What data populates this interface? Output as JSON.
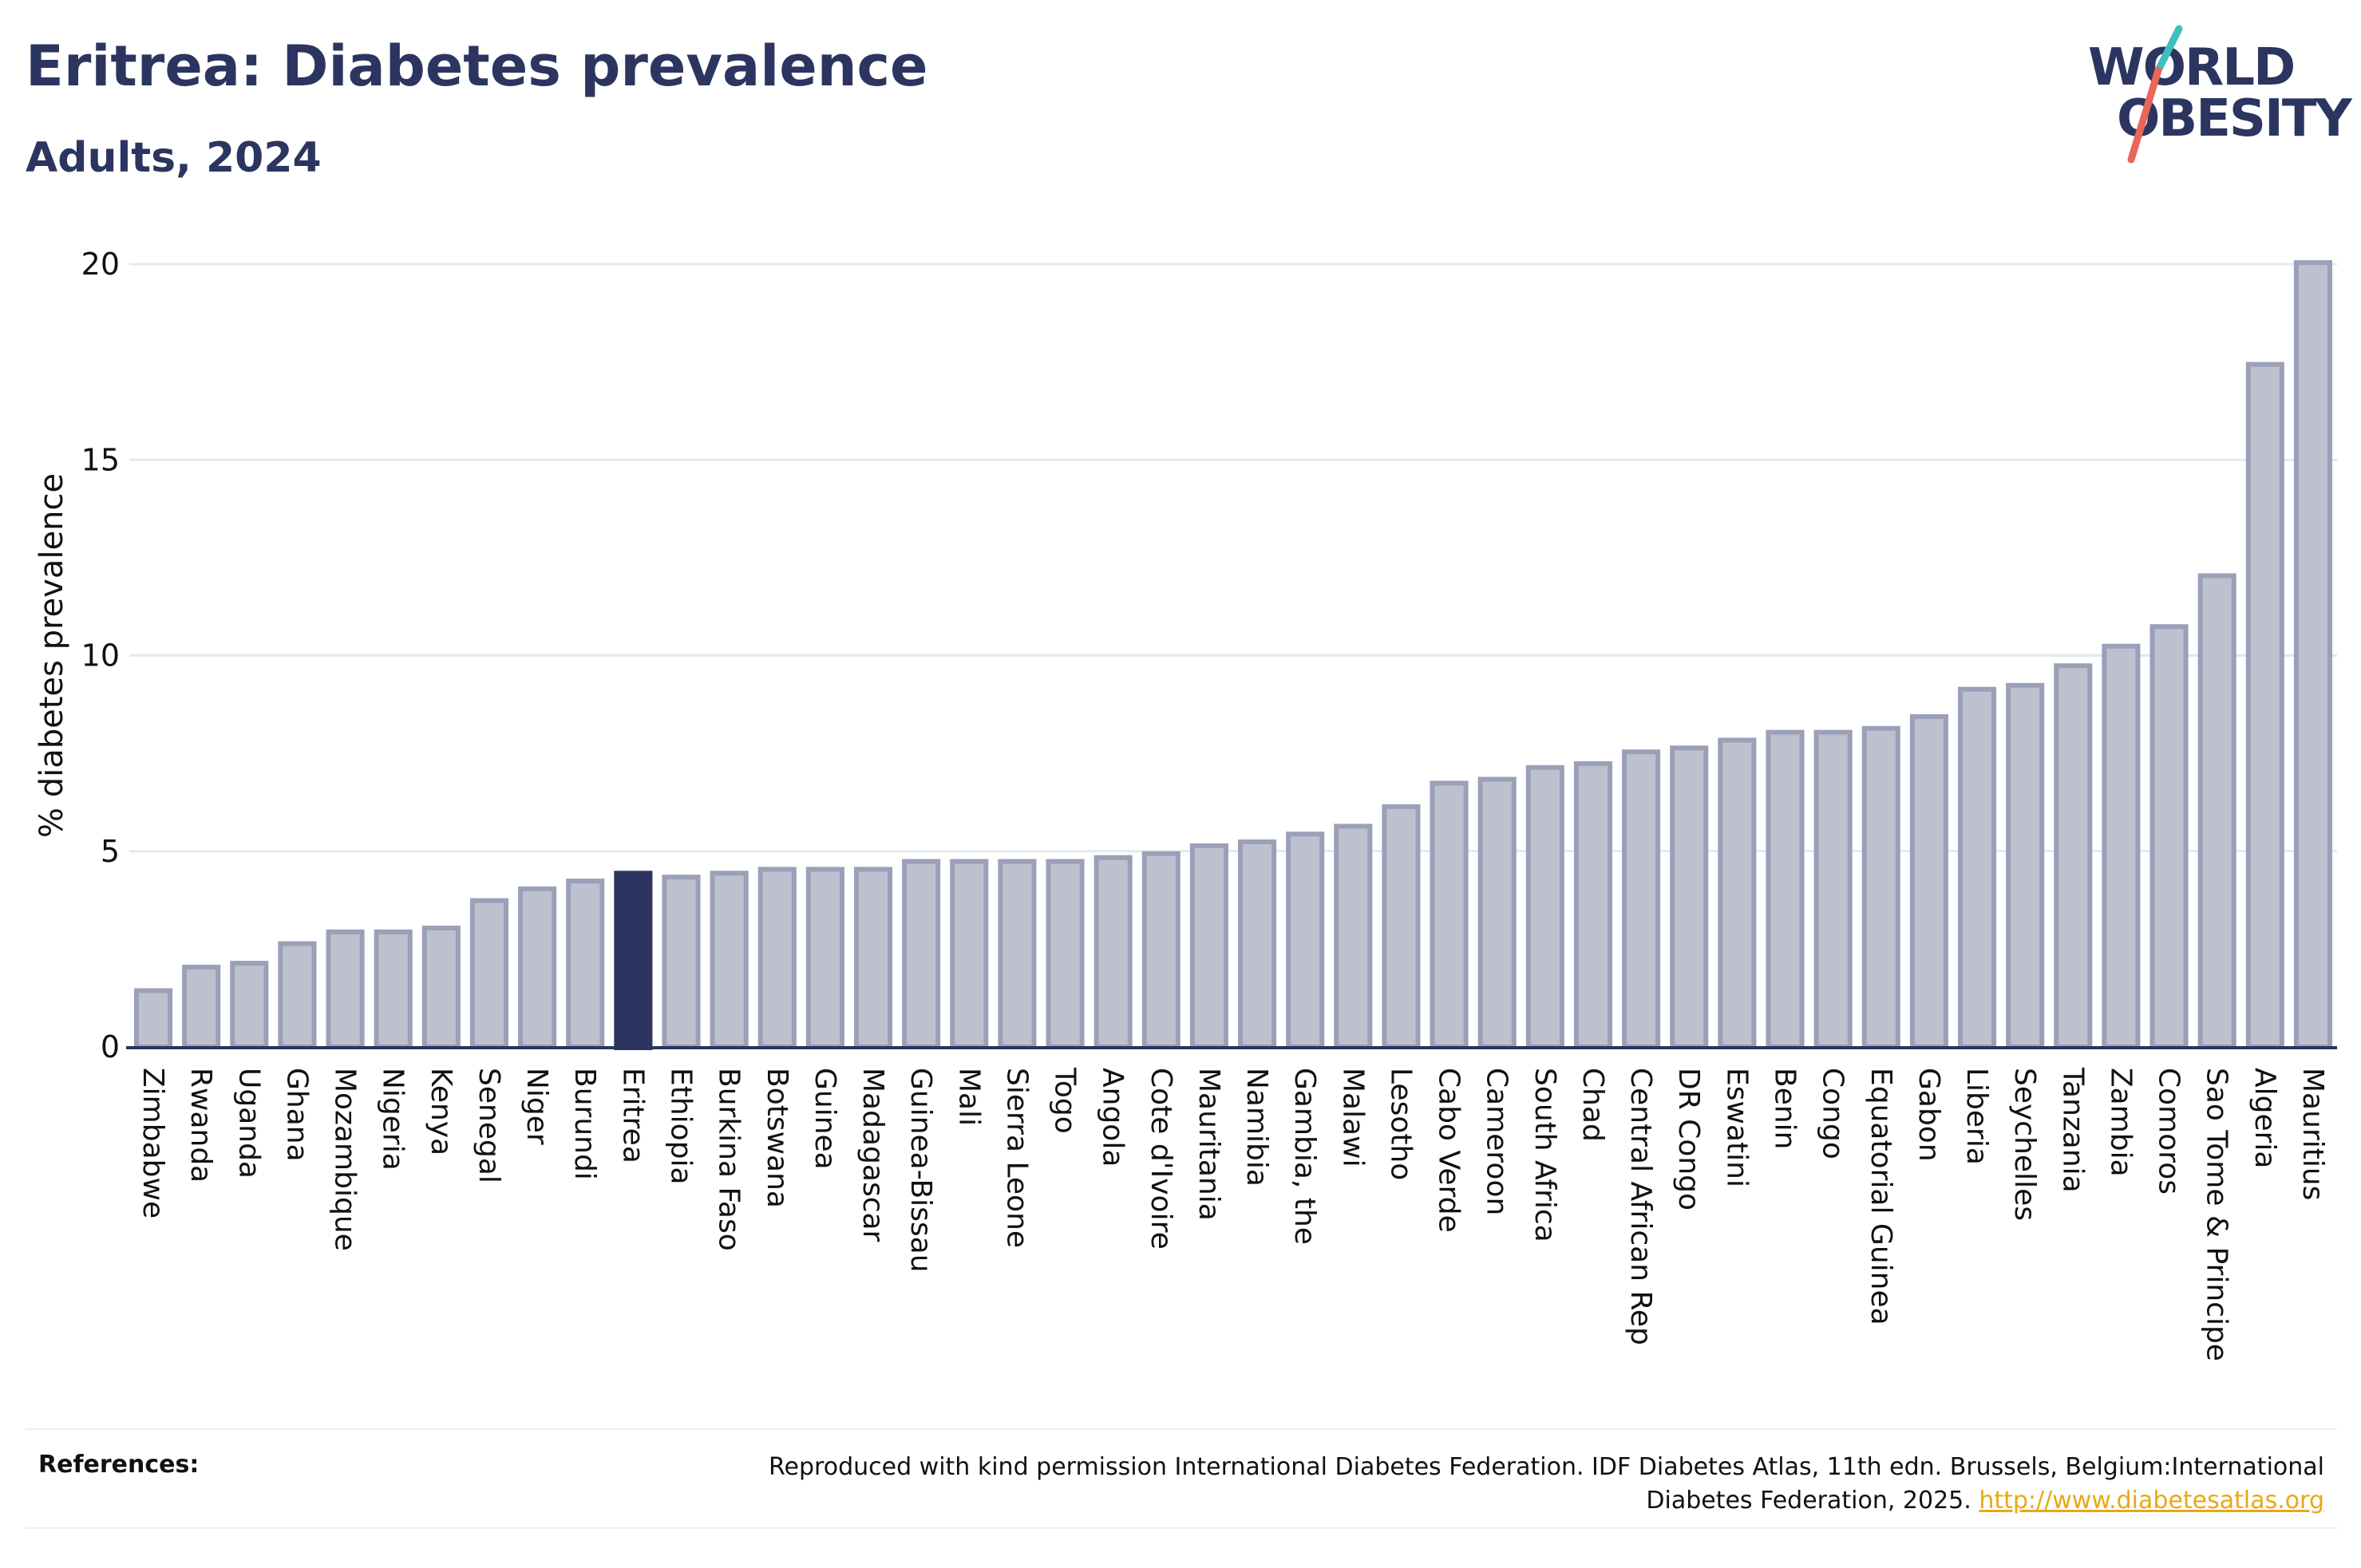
{
  "header": {
    "title": "Eritrea: Diabetes prevalence",
    "subtitle": "Adults, 2024"
  },
  "logo": {
    "line1": "WORLD",
    "line2": "OBESITY",
    "slash_colors": [
      "#3fbfbf",
      "#e9665a"
    ]
  },
  "colors": {
    "bar": "#bdc0cf",
    "bar_stroke": "#9ba0b8",
    "highlight": "#2b3560",
    "grid": "#e6e8ee",
    "axis": "#2b3560"
  },
  "chart_data": {
    "type": "bar",
    "title": "Eritrea: Diabetes prevalence",
    "subtitle": "Adults, 2024",
    "xlabel": "",
    "ylabel": "% diabetes prevalence",
    "ylim": [
      0,
      20.5
    ],
    "yticks": [
      0,
      5,
      10,
      15,
      20
    ],
    "grid": true,
    "highlight": "Eritrea",
    "categories": [
      "Zimbabwe",
      "Rwanda",
      "Uganda",
      "Ghana",
      "Mozambique",
      "Nigeria",
      "Kenya",
      "Senegal",
      "Niger",
      "Burundi",
      "Eritrea",
      "Ethiopia",
      "Burkina Faso",
      "Botswana",
      "Guinea",
      "Madagascar",
      "Guinea-Bissau",
      "Mali",
      "Sierra Leone",
      "Togo",
      "Angola",
      "Cote d'Ivoire",
      "Mauritania",
      "Namibia",
      "Gambia, the",
      "Malawi",
      "Lesotho",
      "Cabo Verde",
      "Cameroon",
      "South Africa",
      "Chad",
      "Central African Rep",
      "DR Congo",
      "Eswatini",
      "Benin",
      "Congo",
      "Equatorial Guinea",
      "Gabon",
      "Liberia",
      "Seychelles",
      "Tanzania",
      "Zambia",
      "Comoros",
      "Sao Tome & Principe",
      "Algeria",
      "Mauritius"
    ],
    "values": [
      1.5,
      2.1,
      2.2,
      2.7,
      3.0,
      3.0,
      3.1,
      3.8,
      4.1,
      4.3,
      4.5,
      4.4,
      4.5,
      4.6,
      4.6,
      4.6,
      4.8,
      4.8,
      4.8,
      4.8,
      4.9,
      5.0,
      5.2,
      5.3,
      5.5,
      5.7,
      6.2,
      6.8,
      6.9,
      7.2,
      7.3,
      7.6,
      7.7,
      7.9,
      8.1,
      8.1,
      8.2,
      8.5,
      9.2,
      9.3,
      9.8,
      10.3,
      10.8,
      12.1,
      17.5,
      20.1
    ]
  },
  "references": {
    "label": "References:",
    "text": "Reproduced with kind permission International Diabetes Federation. IDF Diabetes Atlas, 11th edn. Brussels, Belgium:International Diabetes Federation, 2025. ",
    "link": "http://www.diabetesatlas.org"
  }
}
